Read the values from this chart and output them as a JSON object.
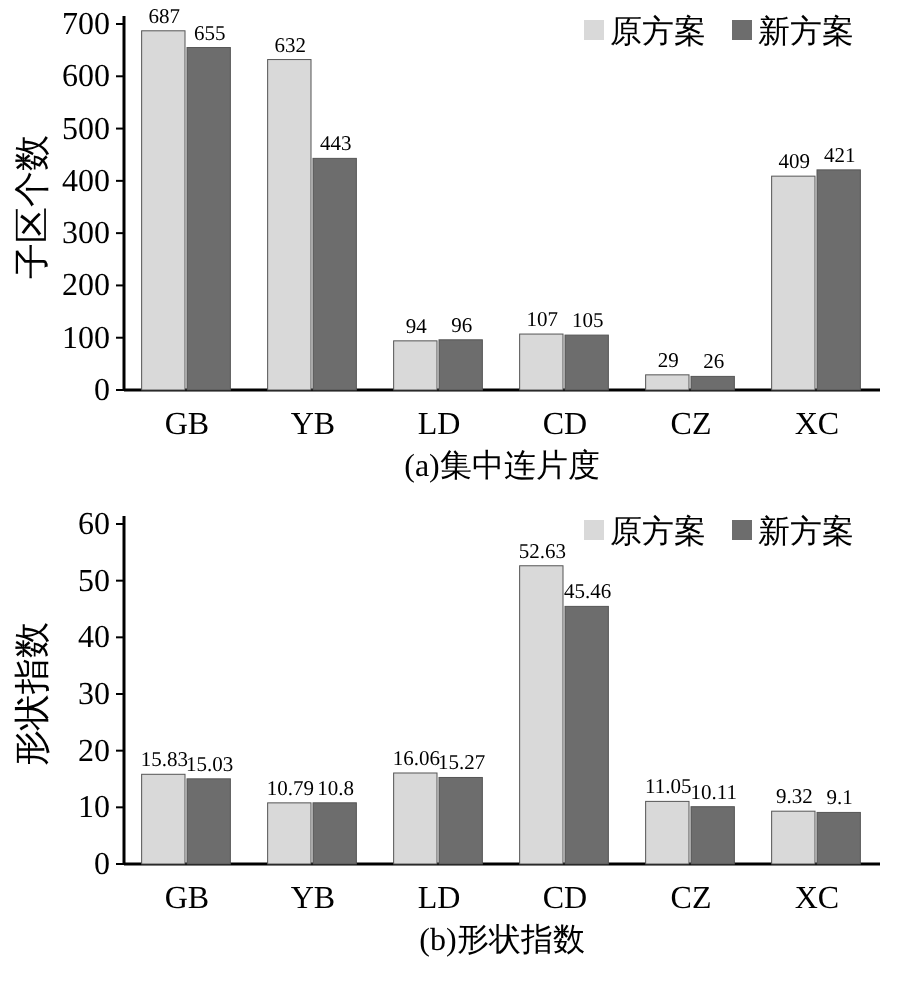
{
  "chart_data": [
    {
      "type": "bar",
      "xlabel": "(a)集中连片度",
      "ylabel": "子区个数",
      "categories": [
        "GB",
        "YB",
        "LD",
        "CD",
        "CZ",
        "XC"
      ],
      "series": [
        {
          "name": "原方案",
          "color": "#d9d9d9",
          "values": [
            687,
            632,
            94,
            107,
            29,
            409
          ]
        },
        {
          "name": "新方案",
          "color": "#6d6d6d",
          "values": [
            655,
            443,
            96,
            105,
            26,
            421
          ]
        }
      ],
      "ylim": [
        0,
        700
      ],
      "yticks": [
        0,
        100,
        200,
        300,
        400,
        500,
        600,
        700
      ],
      "data_labels": true,
      "legend": "top right"
    },
    {
      "type": "bar",
      "xlabel": "(b)形状指数",
      "ylabel": "形状指数",
      "categories": [
        "GB",
        "YB",
        "LD",
        "CD",
        "CZ",
        "XC"
      ],
      "series": [
        {
          "name": "原方案",
          "color": "#d9d9d9",
          "values": [
            15.83,
            10.79,
            16.06,
            52.63,
            11.05,
            9.32
          ]
        },
        {
          "name": "新方案",
          "color": "#6d6d6d",
          "values": [
            15.03,
            10.8,
            15.27,
            45.46,
            10.11,
            9.1
          ]
        }
      ],
      "ylim": [
        0,
        60
      ],
      "yticks": [
        0,
        10,
        20,
        30,
        40,
        50,
        60
      ],
      "data_labels": true,
      "legend": "top right"
    }
  ]
}
